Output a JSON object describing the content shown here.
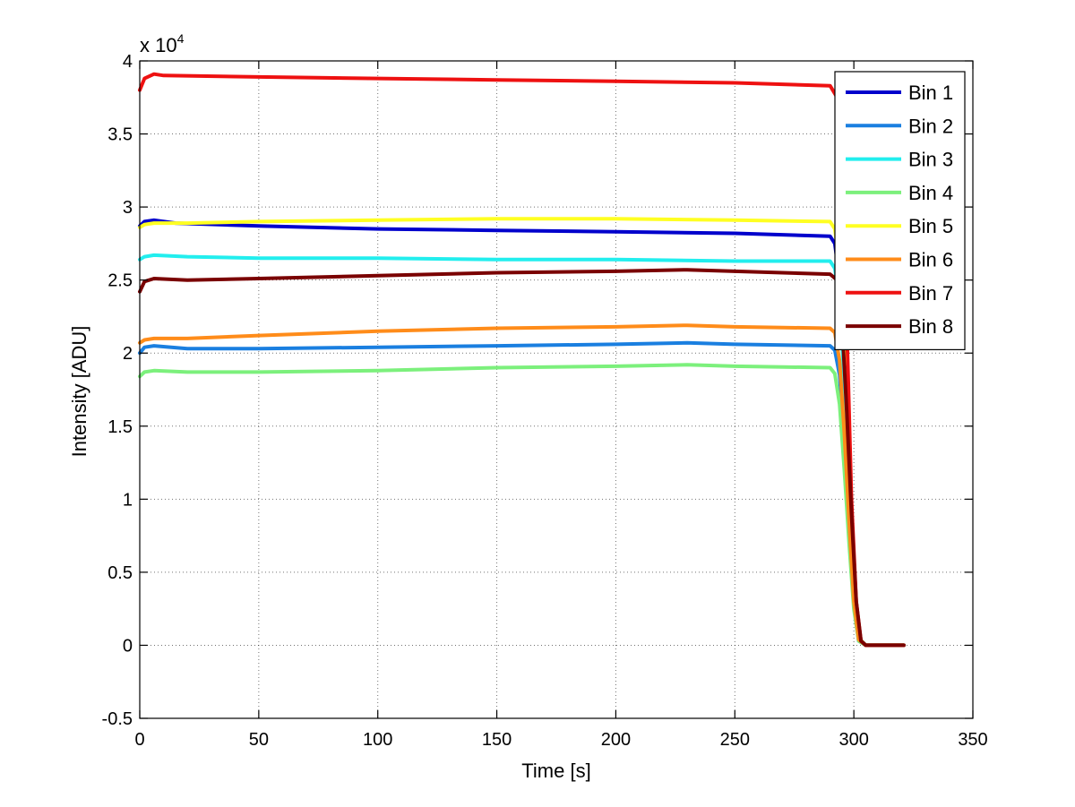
{
  "chart_data": {
    "type": "line",
    "xlabel": "Time [s]",
    "ylabel": "Intensity [ADU]",
    "y_exponent_label": "x 10",
    "y_exponent": "4",
    "xlim": [
      0,
      350
    ],
    "ylim": [
      -0.5,
      4
    ],
    "xticks": [
      0,
      50,
      100,
      150,
      200,
      250,
      300,
      350
    ],
    "yticks": [
      -0.5,
      0,
      0.5,
      1,
      1.5,
      2,
      2.5,
      3,
      3.5,
      4
    ],
    "ytick_labels": [
      "-0.5",
      "0",
      "0.5",
      "1",
      "1.5",
      "2",
      "2.5",
      "3",
      "3.5",
      "4"
    ],
    "grid": true,
    "legend_position": "top-right",
    "series": [
      {
        "name": "Bin 1",
        "color": "#0000cc",
        "x": [
          0,
          2,
          6,
          15,
          50,
          100,
          150,
          200,
          250,
          290,
          292,
          294,
          296,
          298,
          300,
          302,
          305,
          321
        ],
        "y": [
          2.87,
          2.9,
          2.91,
          2.89,
          2.87,
          2.85,
          2.84,
          2.83,
          2.82,
          2.8,
          2.75,
          2.5,
          1.9,
          1.1,
          0.4,
          0.05,
          0.0,
          0.0
        ]
      },
      {
        "name": "Bin 2",
        "color": "#1a7fe0",
        "x": [
          0,
          2,
          6,
          20,
          50,
          100,
          150,
          200,
          230,
          250,
          290,
          292,
          294,
          296,
          298,
          300,
          302,
          305,
          321
        ],
        "y": [
          2.0,
          2.04,
          2.05,
          2.03,
          2.03,
          2.04,
          2.05,
          2.06,
          2.07,
          2.06,
          2.05,
          2.02,
          1.85,
          1.4,
          0.8,
          0.3,
          0.03,
          0.0,
          0.0
        ]
      },
      {
        "name": "Bin 3",
        "color": "#22eeee",
        "x": [
          0,
          2,
          6,
          20,
          50,
          100,
          150,
          200,
          250,
          290,
          292,
          294,
          296,
          298,
          300,
          302,
          305,
          321
        ],
        "y": [
          2.64,
          2.66,
          2.67,
          2.66,
          2.65,
          2.65,
          2.64,
          2.64,
          2.63,
          2.63,
          2.58,
          2.35,
          1.8,
          1.05,
          0.4,
          0.05,
          0.0,
          0.0
        ]
      },
      {
        "name": "Bin 4",
        "color": "#7cf07c",
        "x": [
          0,
          2,
          6,
          20,
          50,
          100,
          150,
          200,
          230,
          250,
          290,
          292,
          294,
          296,
          298,
          300,
          302,
          305,
          321
        ],
        "y": [
          1.84,
          1.87,
          1.88,
          1.87,
          1.87,
          1.88,
          1.9,
          1.91,
          1.92,
          1.91,
          1.9,
          1.86,
          1.65,
          1.2,
          0.7,
          0.25,
          0.03,
          0.0,
          0.0
        ]
      },
      {
        "name": "Bin 5",
        "color": "#ffff22",
        "x": [
          0,
          2,
          6,
          20,
          50,
          100,
          150,
          200,
          250,
          290,
          292,
          294,
          296,
          298,
          300,
          302,
          305,
          321
        ],
        "y": [
          2.86,
          2.88,
          2.89,
          2.89,
          2.9,
          2.91,
          2.92,
          2.92,
          2.91,
          2.9,
          2.85,
          2.6,
          2.0,
          1.2,
          0.45,
          0.05,
          0.0,
          0.0
        ]
      },
      {
        "name": "Bin 6",
        "color": "#ff8c1a",
        "x": [
          0,
          2,
          6,
          20,
          50,
          100,
          150,
          200,
          230,
          250,
          290,
          292,
          294,
          296,
          298,
          300,
          302,
          305,
          321
        ],
        "y": [
          2.07,
          2.09,
          2.1,
          2.1,
          2.12,
          2.15,
          2.17,
          2.18,
          2.19,
          2.18,
          2.17,
          2.14,
          1.95,
          1.45,
          0.85,
          0.3,
          0.04,
          0.0,
          0.0
        ]
      },
      {
        "name": "Bin 7",
        "color": "#ee1111",
        "x": [
          0,
          2,
          6,
          10,
          50,
          100,
          150,
          200,
          250,
          290,
          293,
          295,
          297,
          299,
          301,
          303,
          305,
          321
        ],
        "y": [
          3.8,
          3.88,
          3.91,
          3.9,
          3.89,
          3.88,
          3.87,
          3.86,
          3.85,
          3.83,
          3.75,
          3.2,
          2.2,
          1.0,
          0.3,
          0.03,
          0.0,
          0.0
        ]
      },
      {
        "name": "Bin 8",
        "color": "#7a0000",
        "x": [
          0,
          2,
          6,
          20,
          50,
          100,
          150,
          200,
          230,
          250,
          290,
          293,
          295,
          297,
          299,
          301,
          303,
          305,
          321
        ],
        "y": [
          2.42,
          2.49,
          2.51,
          2.5,
          2.51,
          2.53,
          2.55,
          2.56,
          2.57,
          2.56,
          2.54,
          2.5,
          2.2,
          1.6,
          0.9,
          0.3,
          0.03,
          0.0,
          0.0
        ]
      }
    ]
  }
}
